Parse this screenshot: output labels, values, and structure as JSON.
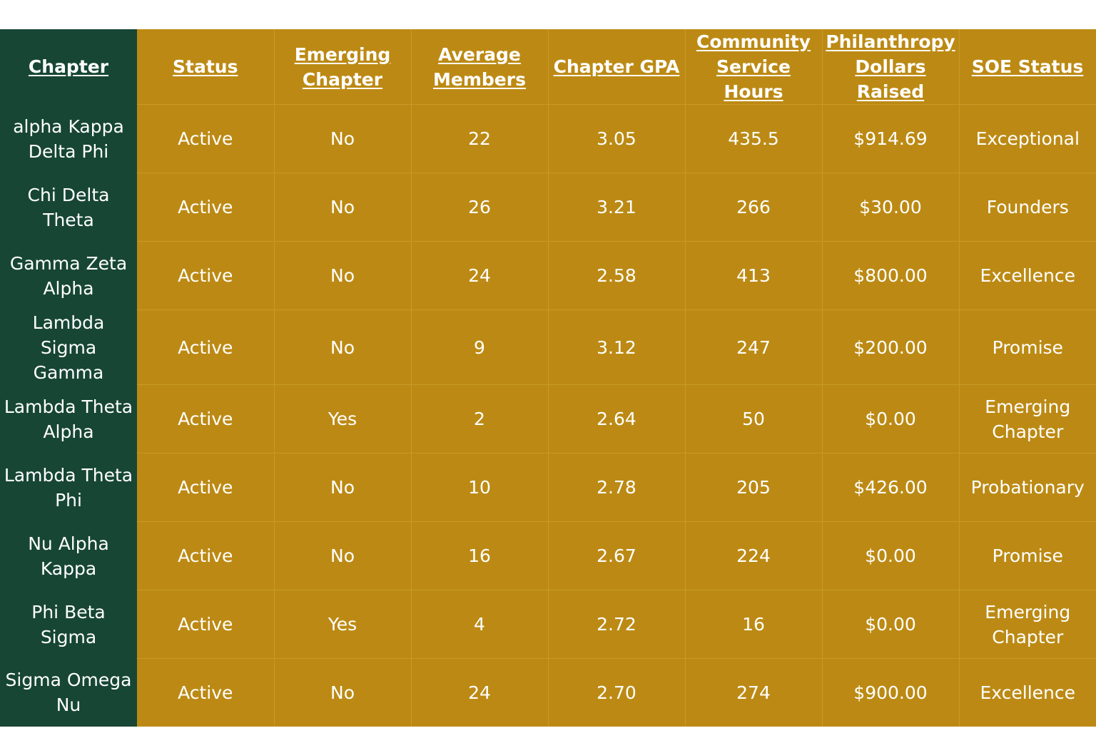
{
  "table": {
    "headers": [
      "Chapter",
      "Status",
      "Emerging Chapter",
      "Average Members ",
      "Chapter GPA",
      "Community Service Hours",
      "Philanthropy Dollars Raised",
      "SOE Status"
    ],
    "rows": [
      [
        "alpha Kappa Delta Phi",
        "Active",
        "No",
        "22",
        "3.05",
        "435.5",
        "$914.69",
        "Exceptional"
      ],
      [
        "Chi Delta Theta",
        "Active",
        "No",
        "26",
        "3.21",
        "266",
        "$30.00",
        "Founders"
      ],
      [
        "Gamma Zeta Alpha",
        "Active",
        "No",
        "24",
        "2.58",
        "413",
        "$800.00",
        "Excellence"
      ],
      [
        "Lambda Sigma Gamma",
        "Active",
        "No",
        "9",
        "3.12",
        "247",
        "$200.00",
        "Promise"
      ],
      [
        "Lambda Theta Alpha",
        "Active",
        "Yes",
        "2",
        "2.64",
        "50",
        "$0.00",
        "Emerging Chapter"
      ],
      [
        "Lambda Theta Phi",
        "Active",
        "No",
        "10",
        "2.78",
        "205",
        "$426.00",
        "Probationary"
      ],
      [
        "Nu Alpha Kappa",
        "Active",
        "No",
        "16",
        "2.67",
        "224",
        "$0.00",
        "Promise"
      ],
      [
        "Phi Beta Sigma",
        "Active",
        "Yes",
        "4",
        "2.72",
        "16",
        "$0.00",
        "Emerging Chapter"
      ],
      [
        "Sigma Omega Nu",
        "Active",
        "No",
        "24",
        "2.70",
        "274",
        "$900.00",
        "Excellence"
      ]
    ]
  },
  "colors": {
    "chapter_column": "#174635",
    "body_cells": "#bc8a14",
    "text": "#ffffff"
  }
}
